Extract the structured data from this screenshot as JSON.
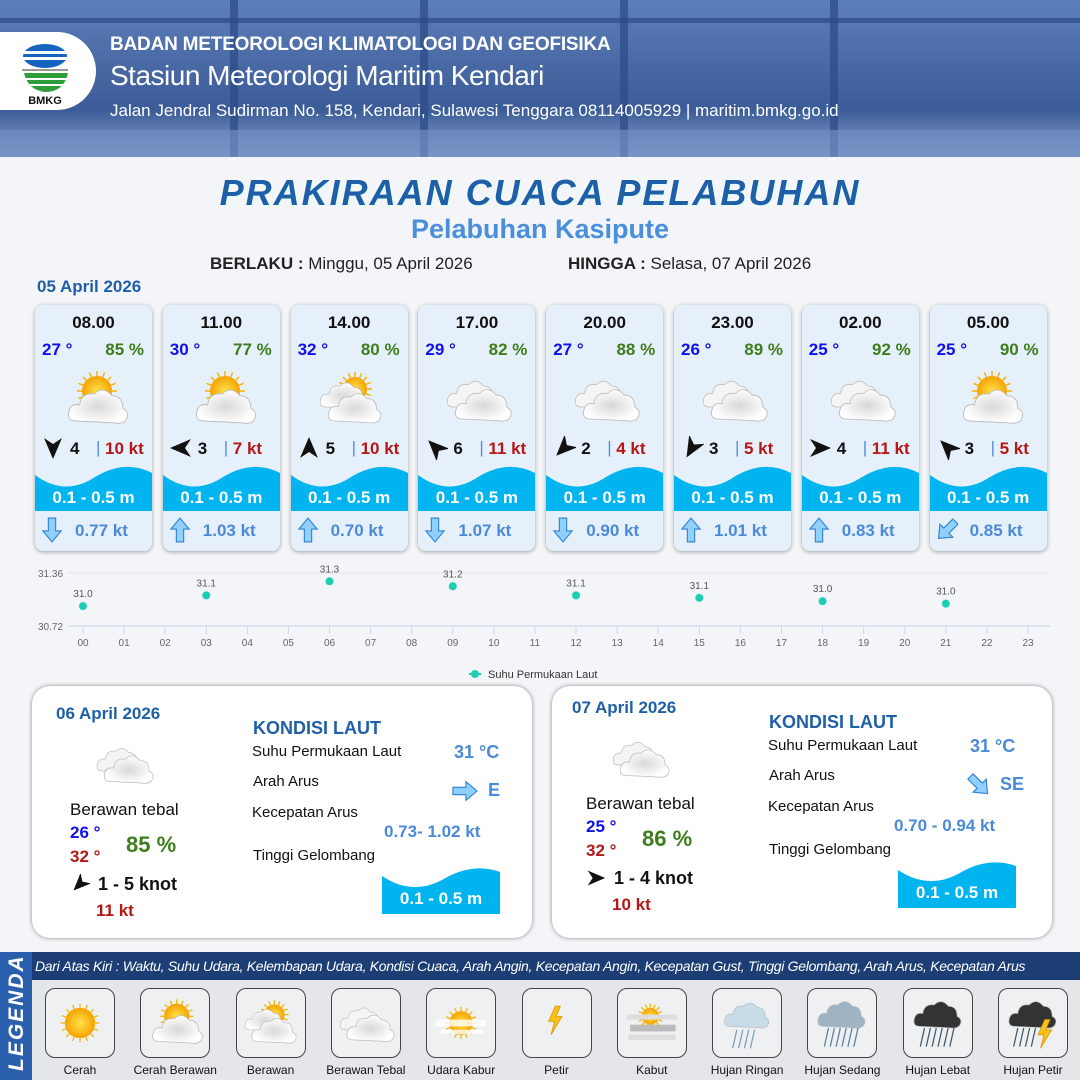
{
  "header": {
    "org": "BADAN METEOROLOGI KLIMATOLOGI DAN GEOFISIKA",
    "station": "Stasiun Meteorologi Maritim Kendari",
    "address": "Jalan Jendral Sudirman No. 158, Kendari, Sulawesi Tenggara  08114005929 | maritim.bmkg.go.id",
    "logo_text": "BMKG"
  },
  "title": "PRAKIRAAN CUACA PELABUHAN",
  "subtitle": "Pelabuhan Kasipute",
  "validity": {
    "from_label": "BERLAKU :",
    "from": "Minggu, 05 April 2026",
    "to_label": "HINGGA :",
    "to": "Selasa, 07 April 2026"
  },
  "day0": {
    "date": "05 April 2026"
  },
  "colors": {
    "brand_blue": "#1f5fa8",
    "temp": "#1010ee",
    "humidity": "#3f7d1c",
    "gust": "#b51717",
    "wave": "#00b4f0",
    "sst_dot": "#1ccfb4"
  },
  "cards": [
    {
      "time": "08.00",
      "temp": "27 °",
      "hum": "85 %",
      "icon": "cerah-berawan",
      "wind_dir_deg": 180,
      "wind": "4",
      "gust": "10 kt",
      "wave": "0.1 - 0.5 m",
      "current_dir_deg": 180,
      "current": "0.77 kt"
    },
    {
      "time": "11.00",
      "temp": "30 °",
      "hum": "77 %",
      "icon": "cerah-berawan",
      "wind_dir_deg": 270,
      "wind": "3",
      "gust": "7 kt",
      "wave": "0.1 - 0.5 m",
      "current_dir_deg": 0,
      "current": "1.03 kt"
    },
    {
      "time": "14.00",
      "temp": "32 °",
      "hum": "80 %",
      "icon": "berawan",
      "wind_dir_deg": 0,
      "wind": "5",
      "gust": "10 kt",
      "wave": "0.1 - 0.5 m",
      "current_dir_deg": 0,
      "current": "0.70 kt"
    },
    {
      "time": "17.00",
      "temp": "29 °",
      "hum": "82 %",
      "icon": "berawan-tebal",
      "wind_dir_deg": 315,
      "wind": "6",
      "gust": "11 kt",
      "wave": "0.1 - 0.5 m",
      "current_dir_deg": 180,
      "current": "1.07 kt"
    },
    {
      "time": "20.00",
      "temp": "27 °",
      "hum": "88 %",
      "icon": "berawan-tebal",
      "wind_dir_deg": 225,
      "wind": "2",
      "gust": "4 kt",
      "wave": "0.1 - 0.5 m",
      "current_dir_deg": 180,
      "current": "0.90 kt"
    },
    {
      "time": "23.00",
      "temp": "26 °",
      "hum": "89 %",
      "icon": "berawan-tebal",
      "wind_dir_deg": 210,
      "wind": "3",
      "gust": "5 kt",
      "wave": "0.1 - 0.5 m",
      "current_dir_deg": 0,
      "current": "1.01 kt"
    },
    {
      "time": "02.00",
      "temp": "25 °",
      "hum": "92 %",
      "icon": "berawan-tebal",
      "wind_dir_deg": 90,
      "wind": "4",
      "gust": "11 kt",
      "wave": "0.1 - 0.5 m",
      "current_dir_deg": 0,
      "current": "0.83 kt"
    },
    {
      "time": "05.00",
      "temp": "25 °",
      "hum": "90 %",
      "icon": "cerah-berawan",
      "wind_dir_deg": 315,
      "wind": "3",
      "gust": "5 kt",
      "wave": "0.1 - 0.5 m",
      "current_dir_deg": 225,
      "current": "0.85 kt"
    }
  ],
  "chart_data": {
    "type": "scatter",
    "x_ticks": [
      "00",
      "01",
      "02",
      "03",
      "04",
      "05",
      "06",
      "07",
      "08",
      "09",
      "10",
      "11",
      "12",
      "13",
      "14",
      "15",
      "16",
      "17",
      "18",
      "19",
      "20",
      "21",
      "22",
      "23"
    ],
    "ylim": [
      30.72,
      31.36
    ],
    "y_ticks": [
      "31.36",
      "30.72"
    ],
    "grid": true,
    "legend": "bottom",
    "series": [
      {
        "name": "Suhu Permukaan Laut",
        "x": [
          0,
          3,
          6,
          9,
          12,
          15,
          18,
          21
        ],
        "values": [
          30.96,
          31.09,
          31.26,
          31.2,
          31.09,
          31.06,
          31.02,
          30.99
        ],
        "labels": [
          "31.0",
          "31.1",
          "31.3",
          "31.2",
          "31.1",
          "31.1",
          "31.0",
          "31.0"
        ]
      }
    ]
  },
  "days": [
    {
      "date": "06 April 2026",
      "icon": "berawan-tebal",
      "cond": "Berawan tebal",
      "tmin": "26 °",
      "tmax": "32 °",
      "hum": "85 %",
      "wind_dir_deg": 225,
      "wind": "1  - 5 knot",
      "gust": "11 kt",
      "sea": {
        "title": "KONDISI LAUT",
        "sst_label": "Suhu Permukaan Laut",
        "sst": "31 °C",
        "dir_label": "Arah Arus",
        "dir": "E",
        "dir_deg": 90,
        "spd_label": "Kecepatan Arus",
        "spd": "0.73- 1.02 kt",
        "wave_label": "Tinggi Gelombang",
        "wave": "0.1 - 0.5 m"
      }
    },
    {
      "date": "07 April 2026",
      "icon": "berawan-tebal",
      "cond": "Berawan tebal",
      "tmin": "25 °",
      "tmax": "32 °",
      "hum": "86 %",
      "wind_dir_deg": 90,
      "wind": "1  - 4 knot",
      "gust": "10 kt",
      "sea": {
        "title": "KONDISI LAUT",
        "sst_label": "Suhu Permukaan Laut",
        "sst": "31 °C",
        "dir_label": "Arah Arus",
        "dir": "SE",
        "dir_deg": 135,
        "spd_label": "Kecepatan Arus",
        "spd": "0.70 - 0.94 kt",
        "wave_label": "Tinggi Gelombang",
        "wave": "0.1 - 0.5 m"
      }
    }
  ],
  "legend": {
    "title": "LEGENDA",
    "description": "Dari Atas Kiri : Waktu, Suhu Udara, Kelembapan Udara, Kondisi Cuaca, Arah Angin, Kecepatan Angin, Kecepatan Gust, Tinggi Gelombang, Arah Arus, Kecepatan Arus",
    "items": [
      {
        "label": "Cerah",
        "icon": "cerah"
      },
      {
        "label": "Cerah Berawan",
        "icon": "cerah-berawan"
      },
      {
        "label": "Berawan",
        "icon": "berawan"
      },
      {
        "label": "Berawan Tebal",
        "icon": "berawan-tebal"
      },
      {
        "label": "Udara Kabur",
        "icon": "udara-kabur"
      },
      {
        "label": "Petir",
        "icon": "petir"
      },
      {
        "label": "Kabut",
        "icon": "kabut"
      },
      {
        "label": "Hujan Ringan",
        "icon": "hujan-ringan"
      },
      {
        "label": "Hujan Sedang",
        "icon": "hujan-sedang"
      },
      {
        "label": "Hujan Lebat",
        "icon": "hujan-lebat"
      },
      {
        "label": "Hujan Petir",
        "icon": "hujan-petir"
      }
    ]
  }
}
